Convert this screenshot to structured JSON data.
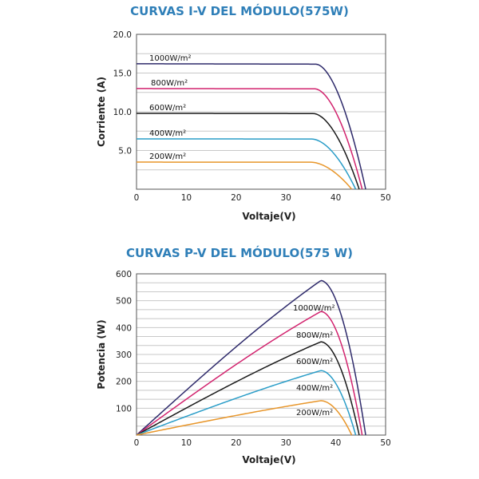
{
  "chart_data": [
    {
      "type": "line",
      "title": "CURVAS I-V DEL MÓDULO(575W)",
      "xlabel": "Voltaje(V)",
      "ylabel": "Corriente (A)",
      "xlim": [
        0,
        50
      ],
      "ylim": [
        0,
        20
      ],
      "xticks": [
        "0",
        "10",
        "20",
        "30",
        "40",
        "50"
      ],
      "yticks": [
        "5.0",
        "10.0",
        "15.0",
        "20.0"
      ],
      "grid": true,
      "series": [
        {
          "name": "1000W/m²",
          "color": "#2e2a6b",
          "isc": 16.2,
          "voc": 46.0,
          "knee": 36.0
        },
        {
          "name": "800W/m²",
          "color": "#d2236e",
          "isc": 13.0,
          "voc": 45.3,
          "knee": 35.8
        },
        {
          "name": "600W/m²",
          "color": "#1a1a1a",
          "isc": 9.8,
          "voc": 44.7,
          "knee": 35.5
        },
        {
          "name": "400W/m²",
          "color": "#2a9dc8",
          "isc": 6.5,
          "voc": 44.0,
          "knee": 35.2
        },
        {
          "name": "200W/m²",
          "color": "#e8962a",
          "isc": 3.5,
          "voc": 43.2,
          "knee": 35.0
        }
      ]
    },
    {
      "type": "line",
      "title": "CURVAS P-V DEL MÓDULO(575 W)",
      "xlabel": "Voltaje(V)",
      "ylabel": "Potencia (W)",
      "xlim": [
        0,
        50
      ],
      "ylim": [
        0,
        600
      ],
      "xticks": [
        "0",
        "10",
        "20",
        "30",
        "40",
        "50"
      ],
      "yticks": [
        "100",
        "200",
        "300",
        "400",
        "500",
        "600"
      ],
      "grid": true,
      "series": [
        {
          "name": "1000W/m²",
          "color": "#2e2a6b",
          "vmp": 37.0,
          "pmax": 575,
          "voc": 46.0
        },
        {
          "name": "800W/m²",
          "color": "#d2236e",
          "vmp": 37.0,
          "pmax": 460,
          "voc": 45.3
        },
        {
          "name": "600W/m²",
          "color": "#1a1a1a",
          "vmp": 37.0,
          "pmax": 347,
          "voc": 44.7
        },
        {
          "name": "400W/m²",
          "color": "#2a9dc8",
          "vmp": 37.0,
          "pmax": 240,
          "voc": 44.0
        },
        {
          "name": "200W/m²",
          "color": "#e8962a",
          "vmp": 37.0,
          "pmax": 128,
          "voc": 43.2
        }
      ]
    }
  ]
}
